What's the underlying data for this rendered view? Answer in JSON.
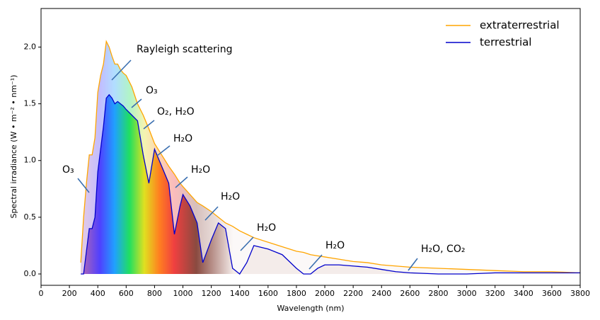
{
  "chart_data": {
    "type": "line",
    "x_label": "Wavelength (nm)",
    "y_label": "Spectral irradiance (W • m⁻² • nm⁻¹)",
    "x": [
      280,
      300,
      320,
      340,
      360,
      380,
      400,
      420,
      440,
      460,
      480,
      500,
      520,
      540,
      560,
      580,
      600,
      640,
      680,
      720,
      760,
      800,
      850,
      900,
      940,
      980,
      1000,
      1050,
      1100,
      1140,
      1200,
      1250,
      1300,
      1350,
      1400,
      1450,
      1500,
      1600,
      1700,
      1800,
      1850,
      1900,
      1950,
      2000,
      2100,
      2200,
      2300,
      2400,
      2500,
      2600,
      2800,
      3000,
      3200,
      3400,
      3600,
      3800
    ],
    "series": [
      {
        "name": "extraterrestrial",
        "color": "#ffa500",
        "values": [
          0.1,
          0.5,
          0.8,
          1.05,
          1.05,
          1.2,
          1.6,
          1.75,
          1.85,
          2.05,
          2.0,
          1.92,
          1.85,
          1.85,
          1.8,
          1.77,
          1.75,
          1.65,
          1.5,
          1.4,
          1.28,
          1.15,
          1.05,
          0.95,
          0.88,
          0.8,
          0.77,
          0.7,
          0.63,
          0.6,
          0.55,
          0.5,
          0.45,
          0.42,
          0.38,
          0.35,
          0.32,
          0.28,
          0.24,
          0.2,
          0.19,
          0.17,
          0.16,
          0.15,
          0.13,
          0.11,
          0.1,
          0.08,
          0.07,
          0.06,
          0.05,
          0.04,
          0.03,
          0.02,
          0.02,
          0.01
        ]
      },
      {
        "name": "terrestrial",
        "color": "#0000cc",
        "values": [
          0,
          0,
          0.2,
          0.4,
          0.4,
          0.5,
          0.9,
          1.1,
          1.3,
          1.55,
          1.58,
          1.55,
          1.5,
          1.52,
          1.5,
          1.48,
          1.45,
          1.4,
          1.35,
          1.05,
          0.8,
          1.1,
          0.95,
          0.8,
          0.35,
          0.6,
          0.7,
          0.6,
          0.45,
          0.1,
          0.3,
          0.45,
          0.4,
          0.05,
          0,
          0.1,
          0.25,
          0.22,
          0.17,
          0.05,
          0,
          0,
          0.05,
          0.08,
          0.08,
          0.07,
          0.06,
          0.04,
          0.02,
          0.01,
          0,
          0,
          0.01,
          0.01,
          0.01,
          0.01
        ]
      }
    ],
    "xlim": [
      0,
      3800
    ],
    "xticks": [
      0,
      200,
      400,
      600,
      800,
      1000,
      1200,
      1400,
      1600,
      1800,
      2000,
      2200,
      2400,
      2600,
      2800,
      3000,
      3200,
      3400,
      3600,
      3800
    ],
    "ylim": [
      -0.1,
      2.34
    ],
    "yticks": [
      {
        "value": 0,
        "label": "0.0"
      },
      0.5,
      {
        "value": 1,
        "label": "1.0"
      },
      1.5,
      {
        "value": 2,
        "label": "2.0"
      }
    ],
    "legend": "upper right",
    "annotations": [
      "Rayleigh scattering",
      "O₃",
      "O₂, H₂O",
      "H₂O",
      "H₂O",
      "H₂O",
      "H₂O",
      "H₂O",
      "H₂O, CO₂",
      "O₃"
    ]
  }
}
